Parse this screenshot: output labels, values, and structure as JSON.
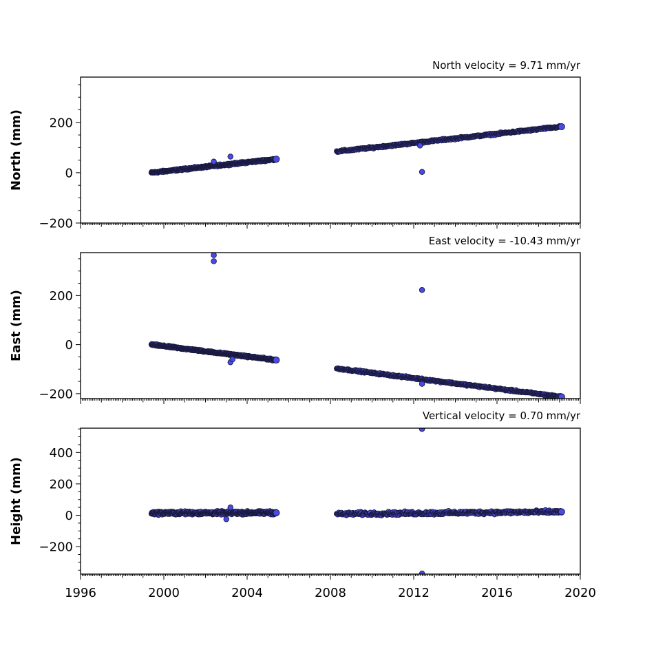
{
  "chart_data": [
    {
      "type": "scatter",
      "title": "North velocity = 9.71 mm/yr",
      "ylabel": "North (mm)",
      "xlim": [
        1996,
        2020
      ],
      "ylim": [
        -200,
        380
      ],
      "yticks": [
        -200,
        0,
        200
      ],
      "x_tick_labels_shown": false,
      "marker_color": "#4a4ae6",
      "marker_edge": "#1a1a40",
      "segments": [
        {
          "x_start": 1999.4,
          "x_end": 2005.4,
          "y_start": 0,
          "y_end": 54,
          "noise": 3
        },
        {
          "x_start": 2008.3,
          "x_end": 2019.1,
          "y_start": 84,
          "y_end": 183,
          "noise": 3
        }
      ],
      "outliers": [
        {
          "x": 2002.4,
          "y": 44
        },
        {
          "x": 2003.2,
          "y": 64
        },
        {
          "x": 2012.4,
          "y": 3
        },
        {
          "x": 2012.3,
          "y": 108
        }
      ]
    },
    {
      "type": "scatter",
      "title": "East velocity = -10.43 mm/yr",
      "ylabel": "East (mm)",
      "xlim": [
        1996,
        2020
      ],
      "ylim": [
        -220,
        375
      ],
      "yticks": [
        -200,
        0,
        200
      ],
      "x_tick_labels_shown": false,
      "marker_color": "#4a4ae6",
      "marker_edge": "#1a1a40",
      "segments": [
        {
          "x_start": 1999.4,
          "x_end": 2005.4,
          "y_start": 0,
          "y_end": -63,
          "noise": 3
        },
        {
          "x_start": 2008.3,
          "x_end": 2019.1,
          "y_start": -97,
          "y_end": -213,
          "noise": 3
        }
      ],
      "outliers": [
        {
          "x": 2002.4,
          "y": 365
        },
        {
          "x": 2002.4,
          "y": 340
        },
        {
          "x": 2003.2,
          "y": -72
        },
        {
          "x": 2003.3,
          "y": -60
        },
        {
          "x": 2012.4,
          "y": 223
        },
        {
          "x": 2012.4,
          "y": -160
        }
      ]
    },
    {
      "type": "scatter",
      "title": "Vertical velocity = 0.70 mm/yr",
      "ylabel": "Height (mm)",
      "xlim": [
        1996,
        2020
      ],
      "ylim": [
        -375,
        555
      ],
      "yticks": [
        -200,
        0,
        200,
        400
      ],
      "x_tick_labels_shown": true,
      "xticks": [
        1996,
        2000,
        2004,
        2008,
        2012,
        2016,
        2020
      ],
      "marker_color": "#4a4ae6",
      "marker_edge": "#1a1a40",
      "segments": [
        {
          "x_start": 1999.4,
          "x_end": 2005.4,
          "y_start": 14,
          "y_end": 16,
          "noise": 9
        },
        {
          "x_start": 2008.3,
          "x_end": 2019.1,
          "y_start": 8,
          "y_end": 22,
          "noise": 9
        }
      ],
      "outliers": [
        {
          "x": 2003.2,
          "y": 50
        },
        {
          "x": 2003.0,
          "y": -25
        },
        {
          "x": 2012.4,
          "y": 550
        },
        {
          "x": 2012.4,
          "y": -372
        }
      ]
    }
  ]
}
